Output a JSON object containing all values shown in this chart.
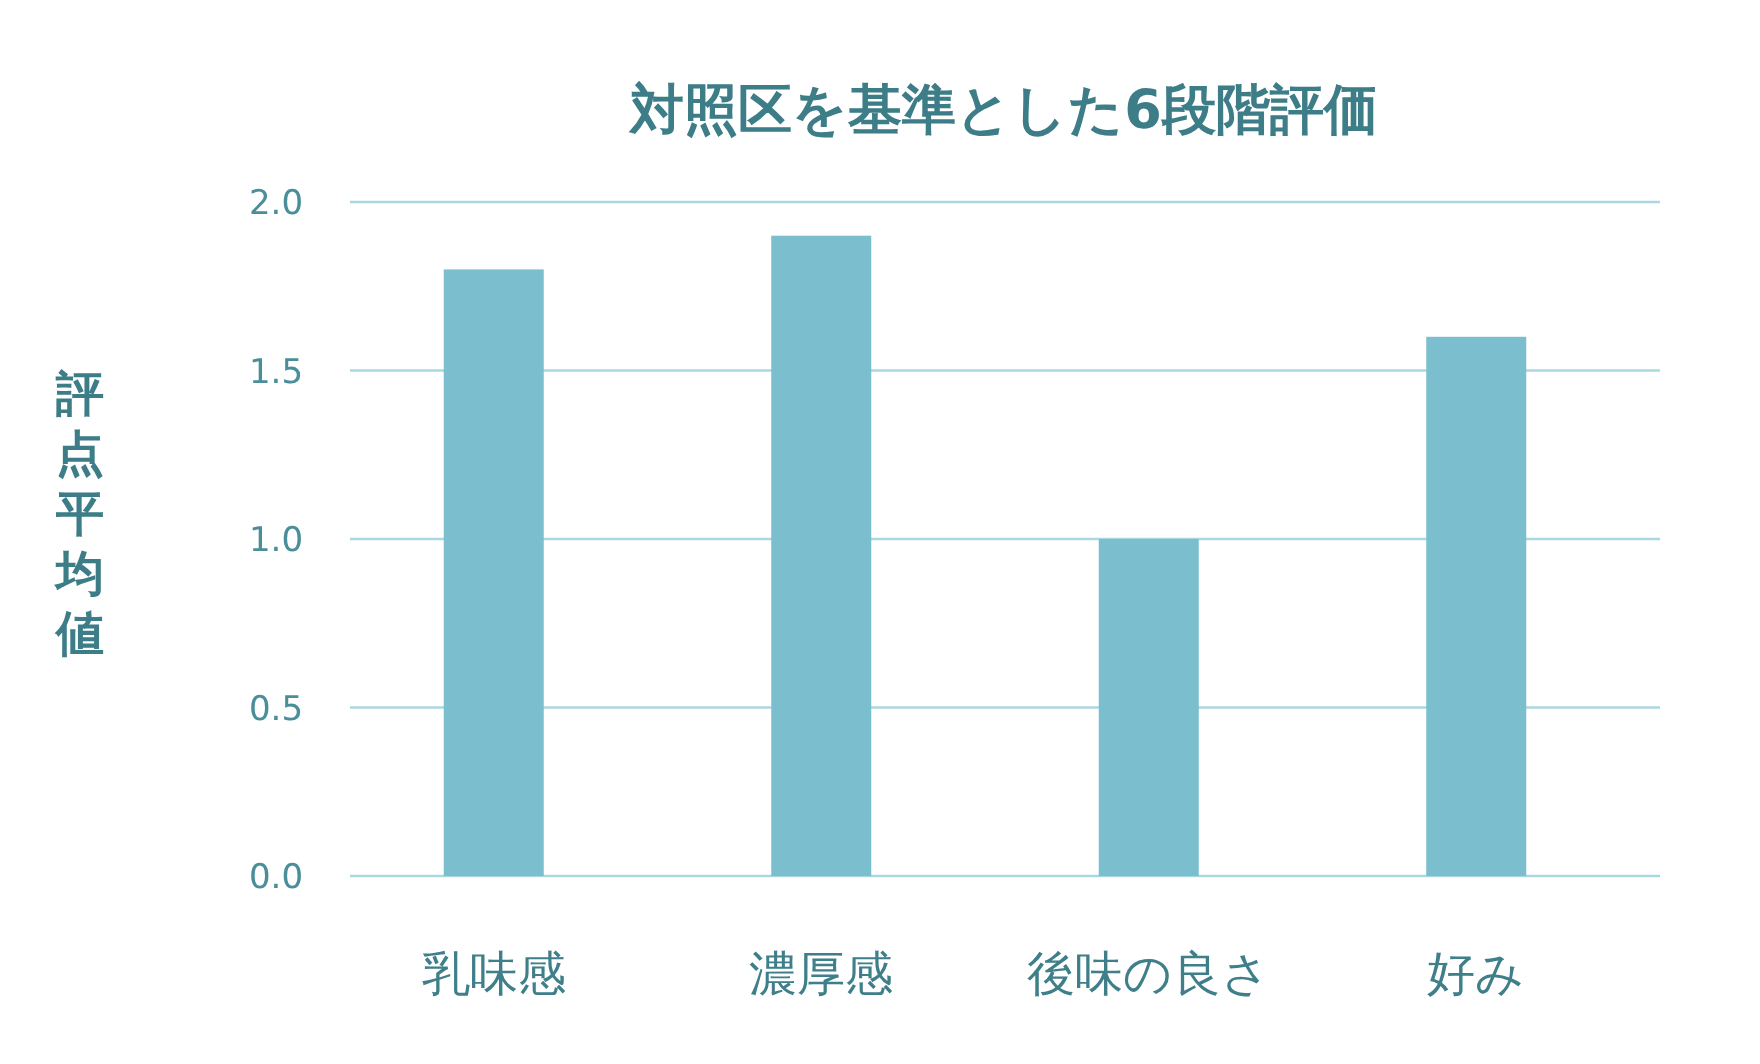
{
  "chart_data": {
    "type": "bar",
    "title": "対照区を基準とした6段階評価",
    "ylabel": "評点平均値",
    "categories": [
      "乳味感",
      "濃厚感",
      "後味の良さ",
      "好み"
    ],
    "values": [
      1.8,
      1.9,
      1.0,
      1.6
    ],
    "color": "#7bbfcf",
    "ylim": [
      0,
      2.0
    ],
    "yticks": [
      {
        "value": 0,
        "label": "0.0"
      },
      {
        "value": 0.5,
        "label": "0.5"
      },
      {
        "value": 1,
        "label": "1.0"
      },
      {
        "value": 1.5,
        "label": "1.5"
      },
      {
        "value": 2,
        "label": "2.0"
      }
    ],
    "grid": "y"
  }
}
